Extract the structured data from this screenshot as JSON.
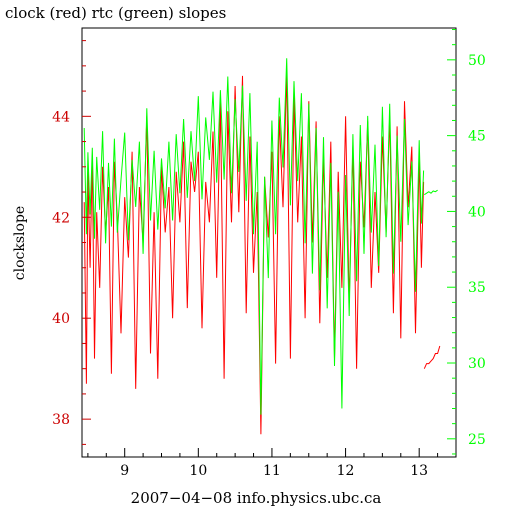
{
  "title": "clock (red) rtc (green) slopes",
  "footer": "2007−04−08 info.physics.ubc.ca",
  "chart_data": {
    "type": "line",
    "title": "clock (red) rtc (green) slopes",
    "xlabel": "2007−04−08 info.physics.ubc.ca",
    "ylabel_left": "clockslope",
    "ylabel_right": "",
    "xlim": [
      8.42,
      13.5
    ],
    "ylim_left": [
      37.25,
      45.75
    ],
    "ylim_right": [
      23.8,
      52.1
    ],
    "x_ticks": [
      9,
      10,
      11,
      12,
      13
    ],
    "x_tick_labels": [
      "9",
      "10",
      "11",
      "12",
      "13"
    ],
    "y_left_ticks": [
      38,
      40,
      42,
      44
    ],
    "y_left_tick_labels": [
      "38",
      "40",
      "42",
      "44"
    ],
    "y_right_ticks": [
      25,
      30,
      35,
      40,
      45,
      50
    ],
    "y_right_tick_labels": [
      "25",
      "30",
      "35",
      "40",
      "45",
      "50"
    ],
    "colors": {
      "clock": "#ff0000",
      "rtc": "#00ff00",
      "axis_left": "#cc0000",
      "axis_right": "#00ff00",
      "frame": "#000000"
    },
    "series": [
      {
        "key": "clock",
        "axis": "left",
        "x": [
          8.45,
          8.48,
          8.5,
          8.53,
          8.56,
          8.59,
          8.62,
          8.66,
          8.7,
          8.74,
          8.78,
          8.82,
          8.86,
          8.9,
          8.95,
          9.0,
          9.05,
          9.1,
          9.15,
          9.2,
          9.25,
          9.3,
          9.35,
          9.4,
          9.45,
          9.5,
          9.55,
          9.6,
          9.65,
          9.7,
          9.75,
          9.8,
          9.85,
          9.9,
          9.95,
          10.0,
          10.05,
          10.1,
          10.15,
          10.2,
          10.25,
          10.3,
          10.35,
          10.4,
          10.45,
          10.5,
          10.55,
          10.6,
          10.65,
          10.7,
          10.75,
          10.8,
          10.85,
          10.9,
          10.95,
          11.0,
          11.05,
          11.1,
          11.15,
          11.2,
          11.25,
          11.3,
          11.35,
          11.4,
          11.45,
          11.5,
          11.55,
          11.6,
          11.65,
          11.7,
          11.75,
          11.8,
          11.85,
          11.9,
          11.95,
          12.0,
          12.05,
          12.1,
          12.15,
          12.2,
          12.25,
          12.3,
          12.35,
          12.4,
          12.45,
          12.5,
          12.55,
          12.6,
          12.65,
          12.7,
          12.75,
          12.8,
          12.85,
          12.9,
          12.95,
          13.0,
          13.03,
          13.06
        ],
        "y": [
          42.3,
          38.7,
          42.9,
          41.0,
          43.2,
          39.2,
          42.1,
          40.6,
          43.0,
          41.7,
          42.6,
          38.9,
          43.1,
          42.0,
          39.7,
          42.4,
          41.2,
          43.3,
          38.6,
          42.6,
          41.5,
          44.0,
          39.3,
          42.1,
          38.8,
          43.0,
          41.7,
          42.6,
          40.0,
          42.9,
          41.9,
          43.5,
          40.2,
          43.1,
          42.5,
          43.3,
          39.8,
          42.7,
          41.9,
          43.7,
          40.8,
          44.3,
          38.8,
          44.1,
          41.9,
          44.6,
          42.1,
          44.8,
          40.1,
          43.6,
          40.9,
          42.5,
          37.7,
          42.8,
          41.6,
          43.3,
          39.1,
          44.0,
          42.2,
          44.9,
          39.2,
          44.4,
          41.9,
          43.6,
          40.0,
          44.3,
          41.5,
          43.9,
          39.9,
          43.2,
          40.8,
          43.5,
          39.2,
          42.9,
          40.6,
          44.0,
          40.3,
          43.4,
          39.0,
          43.1,
          41.8,
          43.9,
          40.6,
          42.5,
          40.9,
          43.6,
          41.7,
          44.0,
          40.1,
          43.8,
          39.6,
          44.3,
          42.2,
          43.4,
          39.7,
          43.2,
          41.0,
          42.7
        ]
      },
      {
        "key": "clock-tail",
        "axis": "left",
        "x": [
          13.07,
          13.1,
          13.13,
          13.16,
          13.19,
          13.22,
          13.25,
          13.28
        ],
        "y": [
          39.0,
          39.1,
          39.1,
          39.15,
          39.2,
          39.3,
          39.3,
          39.45
        ]
      },
      {
        "key": "rtc",
        "axis": "right",
        "x": [
          8.45,
          8.48,
          8.5,
          8.53,
          8.56,
          8.59,
          8.62,
          8.66,
          8.7,
          8.74,
          8.78,
          8.82,
          8.86,
          8.9,
          8.95,
          9.0,
          9.05,
          9.1,
          9.15,
          9.2,
          9.25,
          9.3,
          9.35,
          9.4,
          9.45,
          9.5,
          9.55,
          9.6,
          9.65,
          9.7,
          9.75,
          9.8,
          9.85,
          9.9,
          9.95,
          10.0,
          10.05,
          10.1,
          10.15,
          10.2,
          10.25,
          10.3,
          10.35,
          10.4,
          10.45,
          10.5,
          10.55,
          10.6,
          10.65,
          10.7,
          10.75,
          10.8,
          10.85,
          10.9,
          10.95,
          11.0,
          11.05,
          11.1,
          11.15,
          11.2,
          11.25,
          11.3,
          11.35,
          11.4,
          11.45,
          11.5,
          11.55,
          11.6,
          11.65,
          11.7,
          11.75,
          11.8,
          11.85,
          11.9,
          11.95,
          12.0,
          12.05,
          12.1,
          12.15,
          12.2,
          12.25,
          12.3,
          12.35,
          12.4,
          12.45,
          12.5,
          12.55,
          12.6,
          12.65,
          12.7,
          12.75,
          12.8,
          12.85,
          12.9,
          12.95,
          13.0,
          13.03,
          13.06
        ],
        "y": [
          45.5,
          38.5,
          43.9,
          39.8,
          44.2,
          38.2,
          43.6,
          40.1,
          45.3,
          37.9,
          43.2,
          39.0,
          44.8,
          38.6,
          42.1,
          45.2,
          38.1,
          43.4,
          40.3,
          44.6,
          37.2,
          46.8,
          39.4,
          44.0,
          38.8,
          43.5,
          40.2,
          44.6,
          39.4,
          45.1,
          41.2,
          46.1,
          40.9,
          45.3,
          42.0,
          47.6,
          40.8,
          46.2,
          43.4,
          47.9,
          41.9,
          48.0,
          42.1,
          48.9,
          41.2,
          47.4,
          42.6,
          48.3,
          40.7,
          47.8,
          38.5,
          44.6,
          26.6,
          42.3,
          35.6,
          46.0,
          38.5,
          47.5,
          42.9,
          50.1,
          40.4,
          48.6,
          42.0,
          47.8,
          37.9,
          47.1,
          35.9,
          45.5,
          34.8,
          44.9,
          33.6,
          43.2,
          29.8,
          41.3,
          27.0,
          42.4,
          33.1,
          45.1,
          35.4,
          45.7,
          37.2,
          46.3,
          38.6,
          44.4,
          36.4,
          46.9,
          38.3,
          47.1,
          35.9,
          45.0,
          38.0,
          46.1,
          39.1,
          43.3,
          34.7,
          44.7,
          39.2,
          42.7
        ]
      },
      {
        "key": "rtc-tail",
        "axis": "right",
        "x": [
          13.07,
          13.1,
          13.13,
          13.16,
          13.19,
          13.22,
          13.25
        ],
        "y": [
          41.1,
          41.2,
          41.3,
          41.2,
          41.35,
          41.3,
          41.4
        ]
      }
    ],
    "grid": false
  }
}
